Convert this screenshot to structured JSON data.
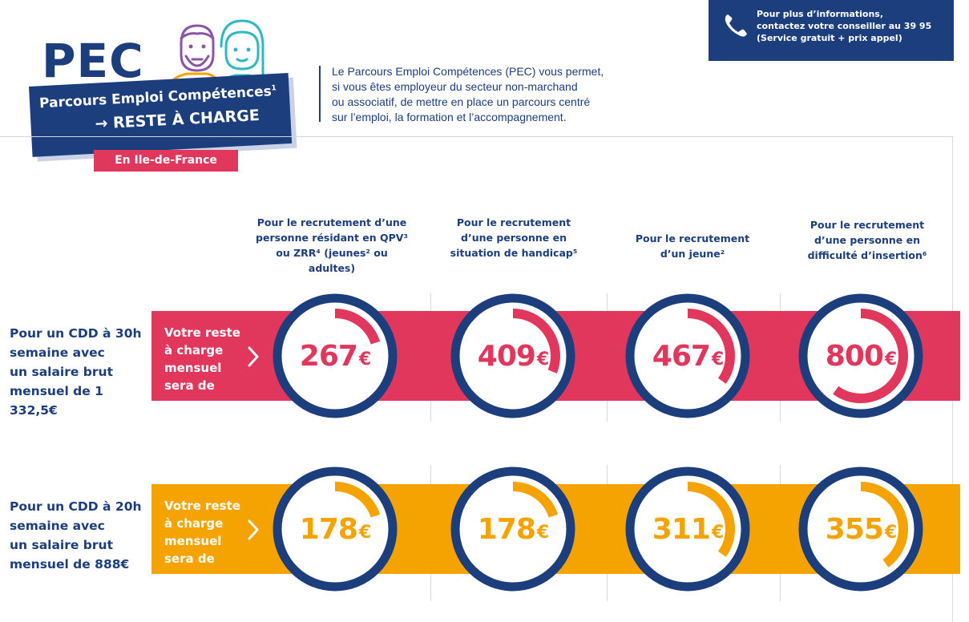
{
  "header": {
    "logo": "PEC",
    "banner_title": "Parcours Emploi Compétences",
    "banner_title_note": "1",
    "banner_subtitle": "→ RESTE À CHARGE",
    "region": "En Ile-de-France",
    "intro_lines": [
      "Le Parcours Emploi Compétences (PEC) vous permet,",
      "si vous êtes employeur du secteur non-marchand",
      "ou associatif, de mettre en place un parcours centré",
      "sur l’emploi, la formation et l’accompagnement."
    ]
  },
  "contact": {
    "lines": [
      "Pour plus d’informations,",
      "contactez votre conseiller au 39 95",
      "(Service gratuit + prix appel)"
    ],
    "icon": "phone-icon"
  },
  "columns": [
    {
      "lines": [
        "Pour le recrutement d’une",
        "personne résidant en QPV³",
        "ou ZRR⁴ (jeunes² ou adultes)"
      ]
    },
    {
      "lines": [
        "Pour le recrutement",
        "d’une personne en",
        "situation de handicap⁵"
      ]
    },
    {
      "lines": [
        "Pour le recrutement",
        "d’un jeune²"
      ]
    },
    {
      "lines": [
        "Pour le recrutement",
        "d’une personne en",
        "difficulté d’insertion⁶"
      ]
    }
  ],
  "rows": [
    {
      "label_lines": [
        "Pour un CDD à 30h",
        "semaine avec",
        "un salaire brut",
        "mensuel de 1 332,5€"
      ],
      "band_lines": [
        "Votre reste",
        "à charge",
        "mensuel",
        "sera de"
      ],
      "color": "#e2375c",
      "values": [
        {
          "amount": "267",
          "currency": "€",
          "fill_fraction": 0.2
        },
        {
          "amount": "409",
          "currency": "€",
          "fill_fraction": 0.31
        },
        {
          "amount": "467",
          "currency": "€",
          "fill_fraction": 0.35
        },
        {
          "amount": "800",
          "currency": "€",
          "fill_fraction": 0.6
        }
      ]
    },
    {
      "label_lines": [
        "Pour un CDD à 20h",
        "semaine avec",
        "un salaire brut",
        "mensuel de 888€"
      ],
      "band_lines": [
        "Votre reste",
        "à charge",
        "mensuel",
        "sera de"
      ],
      "color": "#f5a300",
      "values": [
        {
          "amount": "178",
          "currency": "€",
          "fill_fraction": 0.2
        },
        {
          "amount": "178",
          "currency": "€",
          "fill_fraction": 0.2
        },
        {
          "amount": "311",
          "currency": "€",
          "fill_fraction": 0.35
        },
        {
          "amount": "355",
          "currency": "€",
          "fill_fraction": 0.4
        }
      ]
    }
  ],
  "colors": {
    "navy": "#1d3e7d",
    "red": "#e2375c",
    "orange": "#f5a300",
    "people_purple": "#8c54a8",
    "people_teal": "#2fb8c2"
  }
}
